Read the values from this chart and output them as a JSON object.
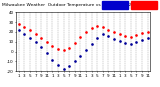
{
  "title": "Milwaukee Weather  Outdoor Temp",
  "title_fontsize": 3.5,
  "bg_color": "#ffffff",
  "plot_bg": "#ffffff",
  "legend_temp_color": "#ff0000",
  "legend_chill_color": "#0000cc",
  "x_ticks": [
    0,
    1,
    2,
    3,
    4,
    5,
    6,
    7,
    8,
    9,
    10,
    11,
    12,
    13,
    14,
    15,
    16,
    17,
    18,
    19,
    20,
    21,
    22,
    23
  ],
  "x_tick_labels": [
    "1",
    "3",
    "5",
    "7",
    "9",
    "11",
    "1",
    "3",
    "5",
    "7",
    "9",
    "11",
    "1",
    "3",
    "5",
    "7",
    "9",
    "11",
    "1",
    "3",
    "5",
    "7",
    "9",
    "11"
  ],
  "ylim": [
    -20,
    40
  ],
  "y_ticks": [
    -20,
    -10,
    0,
    10,
    20,
    30,
    40
  ],
  "y_tick_labels": [
    "-20",
    "-10",
    "0",
    "10",
    "20",
    "30",
    "40"
  ],
  "temp_x": [
    0,
    1,
    2,
    3,
    4,
    5,
    6,
    7,
    8,
    9,
    10,
    11,
    12,
    13,
    14,
    15,
    16,
    17,
    18,
    19,
    20,
    21,
    22,
    23
  ],
  "temp_y": [
    28,
    25,
    22,
    18,
    14,
    10,
    6,
    3,
    2,
    4,
    9,
    15,
    20,
    24,
    26,
    25,
    22,
    20,
    18,
    16,
    15,
    17,
    19,
    20
  ],
  "chill_x": [
    0,
    1,
    2,
    3,
    4,
    5,
    6,
    7,
    8,
    9,
    10,
    11,
    12,
    13,
    14,
    15,
    16,
    17,
    18,
    19,
    20,
    21,
    22,
    23
  ],
  "chill_y": [
    22,
    18,
    14,
    10,
    5,
    -1,
    -8,
    -14,
    -18,
    -15,
    -10,
    -4,
    2,
    8,
    14,
    18,
    16,
    13,
    11,
    9,
    8,
    10,
    12,
    14
  ],
  "grid_color": "#999999",
  "temp_color": "#ff0000",
  "chill_color": "#000099",
  "marker_size": 1.8,
  "tick_fontsize": 3.0,
  "right_y_labels": [
    "-20",
    "-10",
    "0",
    "10",
    "20",
    "30",
    "40"
  ]
}
